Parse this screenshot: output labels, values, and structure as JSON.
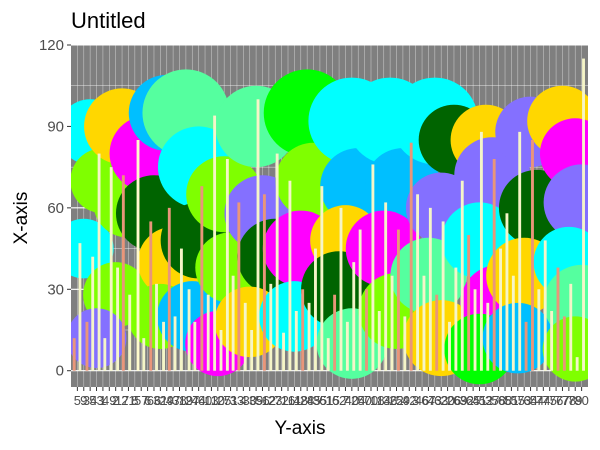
{
  "chart_data": {
    "type": "scatter+bar",
    "title": "Untitled",
    "xlabel": "Y-axis",
    "ylabel": "X-axis",
    "ylim": [
      -6,
      120
    ],
    "yticks": [
      0,
      30,
      60,
      90,
      120
    ],
    "grid": true,
    "legend": "none",
    "colors": {
      "panel": "#7f7f7f",
      "grid": "#ffffff",
      "axis_text": "#4d4d4d",
      "bar_light": "#f5f5c8",
      "bar_salmon": "#e9967a",
      "bar_yellow": "#fffacd"
    },
    "circles": [
      {
        "x": 3,
        "y": 88,
        "size": 12,
        "color": "#00ffff"
      },
      {
        "x": 5,
        "y": 70,
        "size": 12,
        "color": "#7fff00"
      },
      {
        "x": 2,
        "y": 45,
        "size": 11,
        "color": "#00ffff"
      },
      {
        "x": 8,
        "y": 90,
        "size": 14,
        "color": "#ffd700"
      },
      {
        "x": 9,
        "y": 62,
        "size": 13,
        "color": "#7fff00"
      },
      {
        "x": 7,
        "y": 28,
        "size": 12,
        "color": "#7fff00"
      },
      {
        "x": 4,
        "y": 12,
        "size": 11,
        "color": "#8470ff"
      },
      {
        "x": 12,
        "y": 80,
        "size": 14,
        "color": "#ff00ff"
      },
      {
        "x": 13,
        "y": 58,
        "size": 14,
        "color": "#006400"
      },
      {
        "x": 15,
        "y": 95,
        "size": 14,
        "color": "#00bfff"
      },
      {
        "x": 16,
        "y": 40,
        "size": 13,
        "color": "#ffd700"
      },
      {
        "x": 14,
        "y": 20,
        "size": 12,
        "color": "#7fff00"
      },
      {
        "x": 18,
        "y": 95,
        "size": 16,
        "color": "#55ff9f"
      },
      {
        "x": 20,
        "y": 75,
        "size": 15,
        "color": "#00ffff"
      },
      {
        "x": 20,
        "y": 48,
        "size": 14,
        "color": "#006400"
      },
      {
        "x": 19,
        "y": 20,
        "size": 13,
        "color": "#00bfff"
      },
      {
        "x": 24,
        "y": 65,
        "size": 14,
        "color": "#7fff00"
      },
      {
        "x": 25,
        "y": 38,
        "size": 13,
        "color": "#7fff00"
      },
      {
        "x": 23,
        "y": 10,
        "size": 12,
        "color": "#ff00ff"
      },
      {
        "x": 29,
        "y": 90,
        "size": 15,
        "color": "#55ff9f"
      },
      {
        "x": 30,
        "y": 58,
        "size": 14,
        "color": "#8470ff"
      },
      {
        "x": 32,
        "y": 42,
        "size": 14,
        "color": "#006400"
      },
      {
        "x": 28,
        "y": 18,
        "size": 13,
        "color": "#ffd700"
      },
      {
        "x": 37,
        "y": 95,
        "size": 16,
        "color": "#00ff00"
      },
      {
        "x": 38,
        "y": 70,
        "size": 14,
        "color": "#7fff00"
      },
      {
        "x": 36,
        "y": 45,
        "size": 14,
        "color": "#ff00ff"
      },
      {
        "x": 35,
        "y": 20,
        "size": 13,
        "color": "#00ffff"
      },
      {
        "x": 44,
        "y": 92,
        "size": 16,
        "color": "#00ffff"
      },
      {
        "x": 45,
        "y": 68,
        "size": 14,
        "color": "#00bfff"
      },
      {
        "x": 43,
        "y": 48,
        "size": 13,
        "color": "#ffd700"
      },
      {
        "x": 42,
        "y": 30,
        "size": 14,
        "color": "#006400"
      },
      {
        "x": 44,
        "y": 10,
        "size": 13,
        "color": "#55ff9f"
      },
      {
        "x": 50,
        "y": 92,
        "size": 16,
        "color": "#00ffff"
      },
      {
        "x": 52,
        "y": 68,
        "size": 14,
        "color": "#00bfff"
      },
      {
        "x": 49,
        "y": 45,
        "size": 14,
        "color": "#ff00ff"
      },
      {
        "x": 51,
        "y": 22,
        "size": 14,
        "color": "#7fff00"
      },
      {
        "x": 57,
        "y": 92,
        "size": 16,
        "color": "#00ffff"
      },
      {
        "x": 60,
        "y": 85,
        "size": 13,
        "color": "#006400"
      },
      {
        "x": 58,
        "y": 60,
        "size": 13,
        "color": "#8470ff"
      },
      {
        "x": 56,
        "y": 35,
        "size": 14,
        "color": "#55ff9f"
      },
      {
        "x": 58,
        "y": 12,
        "size": 14,
        "color": "#ffd700"
      },
      {
        "x": 65,
        "y": 85,
        "size": 13,
        "color": "#ffd700"
      },
      {
        "x": 66,
        "y": 72,
        "size": 14,
        "color": "#8470ff"
      },
      {
        "x": 64,
        "y": 48,
        "size": 14,
        "color": "#00ffff"
      },
      {
        "x": 67,
        "y": 25,
        "size": 14,
        "color": "#ff00ff"
      },
      {
        "x": 64,
        "y": 8,
        "size": 13,
        "color": "#00ff00"
      },
      {
        "x": 72,
        "y": 88,
        "size": 13,
        "color": "#8470ff"
      },
      {
        "x": 73,
        "y": 60,
        "size": 14,
        "color": "#006400"
      },
      {
        "x": 71,
        "y": 35,
        "size": 14,
        "color": "#ffd700"
      },
      {
        "x": 70,
        "y": 12,
        "size": 13,
        "color": "#00bfff"
      },
      {
        "x": 77,
        "y": 92,
        "size": 13,
        "color": "#ffd700"
      },
      {
        "x": 79,
        "y": 80,
        "size": 13,
        "color": "#ff00ff"
      },
      {
        "x": 80,
        "y": 62,
        "size": 14,
        "color": "#8470ff"
      },
      {
        "x": 78,
        "y": 40,
        "size": 13,
        "color": "#00ffff"
      },
      {
        "x": 80,
        "y": 25,
        "size": 14,
        "color": "#55ff9f"
      },
      {
        "x": 79,
        "y": 8,
        "size": 12,
        "color": "#7fff00"
      }
    ],
    "bars": [
      {
        "x": 0.5,
        "value": 12,
        "color": "#e9967a"
      },
      {
        "x": 1.4,
        "value": 47,
        "color": "#f5f5c8"
      },
      {
        "x": 2.5,
        "value": 18,
        "color": "#e9967a"
      },
      {
        "x": 3.4,
        "value": 42,
        "color": "#f5f5c8"
      },
      {
        "x": 4.4,
        "value": 80,
        "color": "#f5f5c8"
      },
      {
        "x": 5.3,
        "value": 12,
        "color": "#f5f5c8"
      },
      {
        "x": 6.3,
        "value": 75,
        "color": "#f5f5c8"
      },
      {
        "x": 7.3,
        "value": 38,
        "color": "#f5f5c8"
      },
      {
        "x": 8.2,
        "value": 72,
        "color": "#e9967a"
      },
      {
        "x": 9.2,
        "value": 28,
        "color": "#f5f5c8"
      },
      {
        "x": 10.5,
        "value": 85,
        "color": "#fffacd"
      },
      {
        "x": 11.4,
        "value": 12,
        "color": "#f5f5c8"
      },
      {
        "x": 12.5,
        "value": 55,
        "color": "#e9967a"
      },
      {
        "x": 13.4,
        "value": 32,
        "color": "#f5f5c8"
      },
      {
        "x": 14.5,
        "value": 18,
        "color": "#f5f5c8"
      },
      {
        "x": 15.4,
        "value": 60,
        "color": "#e9967a"
      },
      {
        "x": 16.3,
        "value": 20,
        "color": "#f5f5c8"
      },
      {
        "x": 17.3,
        "value": 45,
        "color": "#f5f5c8"
      },
      {
        "x": 18.5,
        "value": 30,
        "color": "#f5f5c8"
      },
      {
        "x": 19.4,
        "value": 18,
        "color": "#f5f5c8"
      },
      {
        "x": 20.5,
        "value": 68,
        "color": "#e9967a"
      },
      {
        "x": 21.5,
        "value": 28,
        "color": "#f5f5c8"
      },
      {
        "x": 22.5,
        "value": 94,
        "color": "#f5f5c8"
      },
      {
        "x": 23.5,
        "value": 15,
        "color": "#f5f5c8"
      },
      {
        "x": 24.5,
        "value": 78,
        "color": "#f5f5c8"
      },
      {
        "x": 25.4,
        "value": 35,
        "color": "#f5f5c8"
      },
      {
        "x": 26.3,
        "value": 62,
        "color": "#e9967a"
      },
      {
        "x": 27.3,
        "value": 25,
        "color": "#f5f5c8"
      },
      {
        "x": 28.3,
        "value": 15,
        "color": "#f5f5c8"
      },
      {
        "x": 29.3,
        "value": 100,
        "color": "#f5f5c8"
      },
      {
        "x": 30.3,
        "value": 65,
        "color": "#e9967a"
      },
      {
        "x": 31.3,
        "value": 32,
        "color": "#f5f5c8"
      },
      {
        "x": 32.3,
        "value": 80,
        "color": "#f5f5c8"
      },
      {
        "x": 33.3,
        "value": 14,
        "color": "#f5f5c8"
      },
      {
        "x": 34.3,
        "value": 70,
        "color": "#f5f5c8"
      },
      {
        "x": 35.3,
        "value": 22,
        "color": "#f5f5c8"
      },
      {
        "x": 36.3,
        "value": 30,
        "color": "#e9967a"
      },
      {
        "x": 37.3,
        "value": 25,
        "color": "#f5f5c8"
      },
      {
        "x": 38.3,
        "value": 45,
        "color": "#f5f5c8"
      },
      {
        "x": 39.3,
        "value": 68,
        "color": "#f5f5c8"
      },
      {
        "x": 40.3,
        "value": 12,
        "color": "#f5f5c8"
      },
      {
        "x": 41.3,
        "value": 28,
        "color": "#e9967a"
      },
      {
        "x": 42.3,
        "value": 60,
        "color": "#f5f5c8"
      },
      {
        "x": 43.3,
        "value": 18,
        "color": "#f5f5c8"
      },
      {
        "x": 44.3,
        "value": 40,
        "color": "#f5f5c8"
      },
      {
        "x": 45.3,
        "value": 52,
        "color": "#f5f5c8"
      },
      {
        "x": 46.3,
        "value": 30,
        "color": "#e9967a"
      },
      {
        "x": 47.3,
        "value": 76,
        "color": "#f5f5c8"
      },
      {
        "x": 48.3,
        "value": 22,
        "color": "#f5f5c8"
      },
      {
        "x": 49.3,
        "value": 62,
        "color": "#f5f5c8"
      },
      {
        "x": 50.3,
        "value": 35,
        "color": "#f5f5c8"
      },
      {
        "x": 51.3,
        "value": 52,
        "color": "#e9967a"
      },
      {
        "x": 52.3,
        "value": 20,
        "color": "#f5f5c8"
      },
      {
        "x": 53.3,
        "value": 84,
        "color": "#e9967a"
      },
      {
        "x": 54.3,
        "value": 65,
        "color": "#f5f5c8"
      },
      {
        "x": 55.3,
        "value": 35,
        "color": "#f5f5c8"
      },
      {
        "x": 56.3,
        "value": 60,
        "color": "#f5f5c8"
      },
      {
        "x": 57.3,
        "value": 28,
        "color": "#e9967a"
      },
      {
        "x": 58.3,
        "value": 55,
        "color": "#f5f5c8"
      },
      {
        "x": 59.3,
        "value": 18,
        "color": "#f5f5c8"
      },
      {
        "x": 60.3,
        "value": 38,
        "color": "#f5f5c8"
      },
      {
        "x": 61.3,
        "value": 70,
        "color": "#f5f5c8"
      },
      {
        "x": 62.3,
        "value": 50,
        "color": "#e9967a"
      },
      {
        "x": 63.3,
        "value": 30,
        "color": "#f5f5c8"
      },
      {
        "x": 64.3,
        "value": 88,
        "color": "#f5f5c8"
      },
      {
        "x": 65.3,
        "value": 25,
        "color": "#f5f5c8"
      },
      {
        "x": 66.3,
        "value": 78,
        "color": "#e9967a"
      },
      {
        "x": 67.3,
        "value": 45,
        "color": "#f5f5c8"
      },
      {
        "x": 68.3,
        "value": 58,
        "color": "#f5f5c8"
      },
      {
        "x": 69.3,
        "value": 35,
        "color": "#f5f5c8"
      },
      {
        "x": 70.3,
        "value": 88,
        "color": "#f5f5c8"
      },
      {
        "x": 71.3,
        "value": 18,
        "color": "#e9967a"
      },
      {
        "x": 72.3,
        "value": 85,
        "color": "#e9967a"
      },
      {
        "x": 73.3,
        "value": 30,
        "color": "#f5f5c8"
      },
      {
        "x": 74.3,
        "value": 48,
        "color": "#f5f5c8"
      },
      {
        "x": 75.3,
        "value": 22,
        "color": "#f5f5c8"
      },
      {
        "x": 76.3,
        "value": 38,
        "color": "#e9967a"
      },
      {
        "x": 77.3,
        "value": 20,
        "color": "#e9967a"
      },
      {
        "x": 78.3,
        "value": 32,
        "color": "#f5f5c8"
      },
      {
        "x": 79.3,
        "value": 5,
        "color": "#f5f5c8"
      },
      {
        "x": 80.3,
        "value": 115,
        "color": "#f5f5c8"
      }
    ],
    "x_tick_labels": [
      "5",
      "9",
      "34",
      "53",
      "1",
      "49",
      "2",
      "17",
      "21",
      "8",
      "57",
      "6",
      "66",
      "31",
      "29",
      "47",
      "38",
      "19",
      "27",
      "44",
      "60",
      "13",
      "10",
      "25",
      "71",
      "33",
      "4",
      "30",
      "39",
      "56",
      "12",
      "23",
      "72",
      "16",
      "11",
      "48",
      "28",
      "45",
      "35",
      "61",
      "15",
      "62",
      "7",
      "40",
      "24",
      "50",
      "70",
      "18",
      "14",
      "36",
      "22",
      "59",
      "42",
      "3",
      "46",
      "67",
      "43",
      "63",
      "20",
      "26",
      "69",
      "32",
      "65",
      "41",
      "52",
      "37",
      "58",
      "68",
      "51",
      "55",
      "73",
      "64",
      "54",
      "74",
      "75",
      "76",
      "77",
      "78",
      "79",
      "80"
    ]
  }
}
